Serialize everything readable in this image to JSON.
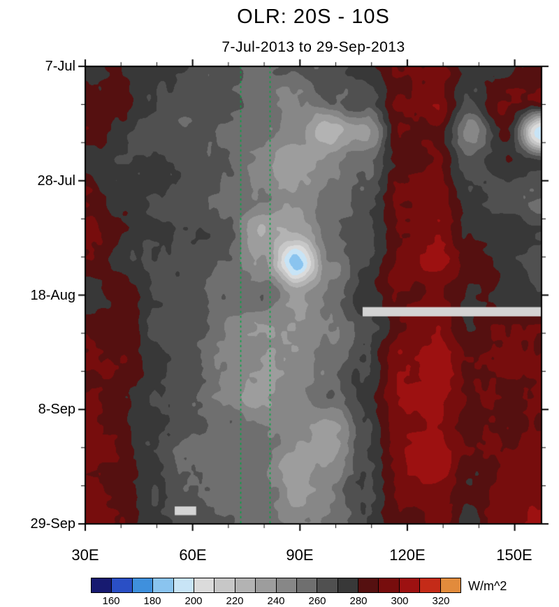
{
  "chart_data": {
    "type": "heatmap",
    "title": "OLR: 20S - 10S",
    "subtitle": "7-Jul-2013 to 29-Sep-2013",
    "xtick_labels": [
      "30E",
      "60E",
      "90E",
      "120E",
      "150E"
    ],
    "xtick_lons": [
      30,
      60,
      90,
      120,
      150
    ],
    "x_minor_lons": [
      40,
      50,
      70,
      80,
      100,
      110,
      130,
      140
    ],
    "ytick_labels": [
      "7-Jul",
      "28-Jul",
      "18-Aug",
      "8-Sep",
      "29-Sep"
    ],
    "ytick_days": [
      0,
      21,
      42,
      63,
      84
    ],
    "y_minor_days": [
      7,
      14,
      28,
      35,
      49,
      56,
      70,
      77
    ],
    "lon_range": [
      30,
      157.5
    ],
    "day_range": [
      0,
      84
    ],
    "levels": {
      "min": 150,
      "max": 330,
      "step": 10
    },
    "palette": [
      "#171a70",
      "#2a4fc5",
      "#3f90dd",
      "#8ac4ef",
      "#c8e4f6",
      "#dbdbdb",
      "#c7c7c7",
      "#b3b3b3",
      "#9d9d9d",
      "#878787",
      "#6f6f6f",
      "#505050",
      "#383838",
      "#551010",
      "#770d0d",
      "#9d1111",
      "#c42b18",
      "#e28b3c"
    ],
    "grid": {
      "lons": [
        30,
        40,
        50,
        60,
        70,
        80,
        90,
        100,
        110,
        120,
        130,
        140,
        150,
        157.5
      ],
      "days": [
        0,
        6,
        12,
        18,
        24,
        30,
        36,
        42,
        48,
        54,
        60,
        66,
        72,
        78,
        84
      ],
      "olr_values": [
        [
          276,
          284,
          274,
          270,
          264,
          256,
          260,
          268,
          275,
          290,
          294,
          276,
          276,
          282
        ],
        [
          280,
          288,
          272,
          266,
          266,
          256,
          246,
          262,
          268,
          294,
          298,
          272,
          290,
          294
        ],
        [
          286,
          276,
          268,
          262,
          258,
          250,
          240,
          222,
          238,
          288,
          292,
          246,
          286,
          196
        ],
        [
          274,
          266,
          274,
          268,
          262,
          246,
          228,
          250,
          260,
          284,
          292,
          266,
          276,
          268
        ],
        [
          290,
          276,
          268,
          264,
          260,
          250,
          238,
          256,
          264,
          290,
          296,
          276,
          268,
          262
        ],
        [
          296,
          280,
          270,
          268,
          262,
          232,
          230,
          258,
          268,
          294,
          300,
          278,
          274,
          268
        ],
        [
          286,
          274,
          268,
          266,
          260,
          244,
          186,
          246,
          270,
          296,
          302,
          284,
          276,
          270
        ],
        [
          278,
          284,
          270,
          264,
          260,
          256,
          240,
          254,
          272,
          290,
          292,
          278,
          274,
          276
        ],
        [
          290,
          286,
          268,
          262,
          250,
          244,
          242,
          252,
          268,
          292,
          296,
          280,
          286,
          290
        ],
        [
          296,
          290,
          270,
          264,
          246,
          240,
          246,
          256,
          272,
          298,
          304,
          288,
          292,
          296
        ],
        [
          288,
          284,
          268,
          258,
          244,
          238,
          248,
          260,
          274,
          302,
          306,
          290,
          286,
          290
        ],
        [
          292,
          286,
          272,
          262,
          254,
          248,
          244,
          238,
          268,
          296,
          302,
          286,
          290,
          294
        ],
        [
          296,
          290,
          268,
          260,
          256,
          252,
          236,
          238,
          266,
          298,
          304,
          288,
          292,
          296
        ],
        [
          290,
          284,
          270,
          262,
          258,
          254,
          238,
          248,
          272,
          294,
          299,
          282,
          296,
          299
        ],
        [
          299,
          292,
          272,
          266,
          262,
          256,
          248,
          254,
          268,
          288,
          294,
          278,
          299,
          302
        ]
      ]
    },
    "reference_lines": {
      "style": "dashed",
      "color": "#00a844",
      "lons": [
        73.3,
        81.5
      ]
    },
    "missing_data_bars": [
      {
        "lon_start": 107.5,
        "lon_end": 157.5,
        "day_start": 44.2,
        "day_end": 45.9,
        "color": "#d4d4d4"
      },
      {
        "lon_start": 55,
        "lon_end": 61,
        "day_start": 80.8,
        "day_end": 82.4,
        "color": "#d4d4d4"
      }
    ],
    "frame_color": "#000000",
    "colorbar": {
      "tick_labels": [
        "160",
        "180",
        "200",
        "220",
        "240",
        "260",
        "280",
        "300",
        "320"
      ],
      "tick_values": [
        160,
        180,
        200,
        220,
        240,
        260,
        280,
        300,
        320
      ],
      "range": [
        150,
        330
      ],
      "units": "W/m^2"
    }
  }
}
